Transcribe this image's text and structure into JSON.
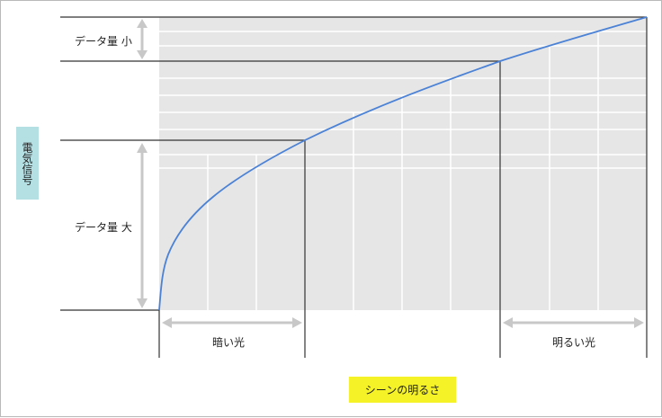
{
  "y_axis": {
    "label": "電気信号"
  },
  "x_axis": {
    "label": "シーンの明るさ"
  },
  "annotations": {
    "small_data": "データ量 小",
    "large_data": "データ量 大",
    "dark_light": "暗い光",
    "bright_light": "明るい光"
  },
  "colors": {
    "plot_background": "#e6e6e6",
    "grid": "#ffffff",
    "curve": "#4b82d6",
    "guide_lines": "#333333",
    "arrows": "#c8c8c8",
    "y_label_bg": "#b4dfe3",
    "x_label_bg": "#f5f227"
  }
}
